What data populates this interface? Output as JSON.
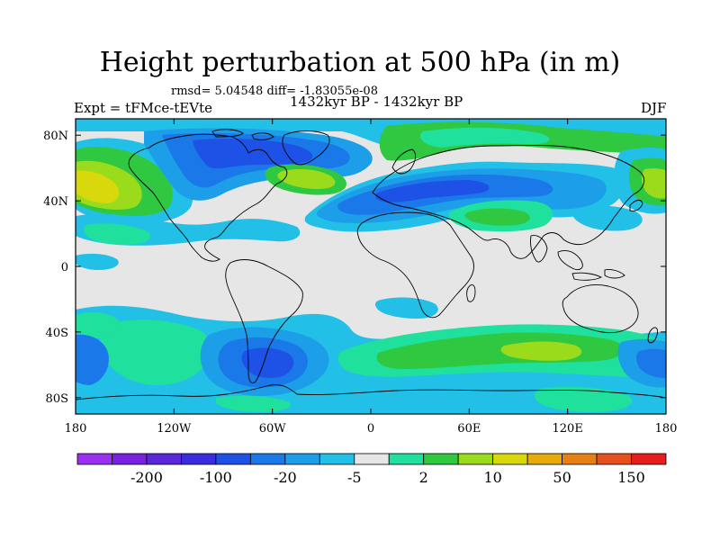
{
  "title": "Height perturbation at 500 hPa (in m)",
  "stats_text": "rmsd= 5.04548  diff= -1.83055e-08",
  "experiment": "Expt = tFMce-tEVte",
  "period": "1432kyr BP - 1432kyr BP",
  "season": "DJF",
  "axes": {
    "x_ticks": [
      {
        "value": -180,
        "label": "180"
      },
      {
        "value": -120,
        "label": "120W"
      },
      {
        "value": -60,
        "label": "60W"
      },
      {
        "value": 0,
        "label": "0"
      },
      {
        "value": 60,
        "label": "60E"
      },
      {
        "value": 120,
        "label": "120E"
      },
      {
        "value": 180,
        "label": "180"
      }
    ],
    "y_ticks": [
      {
        "value": 80,
        "label": "80N"
      },
      {
        "value": 40,
        "label": "40N"
      },
      {
        "value": 0,
        "label": "0"
      },
      {
        "value": -40,
        "label": "40S"
      },
      {
        "value": -80,
        "label": "80S"
      }
    ],
    "lon_range": [
      -180,
      180
    ],
    "lat_range": [
      -90,
      90
    ]
  },
  "colorbar": {
    "colors": [
      "#9b30f0",
      "#7a20e0",
      "#5a28d8",
      "#3c2ce0",
      "#1e52e6",
      "#1a78e8",
      "#1c9ee8",
      "#22bfe6",
      "#e6e6e6",
      "#1fe09c",
      "#30c840",
      "#9adc1c",
      "#d8d80c",
      "#e6aa0a",
      "#e68014",
      "#e6501c",
      "#e61e1e"
    ],
    "labels": [
      {
        "after_box": 1,
        "text": "-200"
      },
      {
        "after_box": 3,
        "text": "-100"
      },
      {
        "after_box": 5,
        "text": "-20"
      },
      {
        "after_box": 7,
        "text": "-5"
      },
      {
        "after_box": 9,
        "text": "2"
      },
      {
        "after_box": 11,
        "text": "10"
      },
      {
        "after_box": 13,
        "text": "50"
      },
      {
        "after_box": 15,
        "text": "150"
      }
    ]
  }
}
